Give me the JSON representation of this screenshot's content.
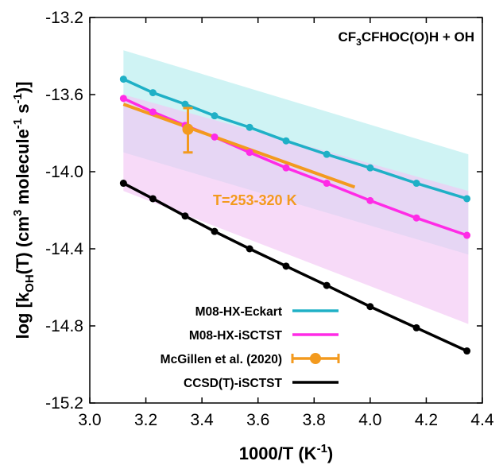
{
  "chart_data": {
    "type": "line",
    "title": "",
    "annotation": "CF3CFHOC(O)H + OH",
    "xlabel": "1000/T (K⁻¹)",
    "ylabel": "log [kₒₕ(T) (cm³ molecule⁻¹ s⁻¹)]",
    "xlim": [
      3.0,
      4.4
    ],
    "ylim": [
      -15.2,
      -13.2
    ],
    "xticks": [
      "3.0",
      "3.2",
      "3.4",
      "3.6",
      "3.8",
      "4.0",
      "4.2",
      "4.4"
    ],
    "yticks": [
      "-13.2",
      "-13.6",
      "-14.0",
      "-14.4",
      "-14.8",
      "-15.2"
    ],
    "grid": false,
    "legend_position": "bottom-left",
    "uncertainty_bands": [
      {
        "series": "M08-HX-Eckart",
        "color": "#bfeff0",
        "x": [
          3.12,
          4.35
        ],
        "upper": [
          -13.37,
          -13.91
        ],
        "lower": [
          -13.9,
          -14.43
        ]
      },
      {
        "series": "M08-HX-iSCTST",
        "color": "#f3c6f5",
        "x": [
          3.12,
          4.35
        ],
        "upper": [
          -13.6,
          -14.1
        ],
        "lower": [
          -14.1,
          -14.79
        ]
      }
    ],
    "series": [
      {
        "name": "M08-HX-Eckart",
        "color": "#1fb0c6",
        "x": [
          3.12,
          3.225,
          3.34,
          3.445,
          3.57,
          3.7,
          3.845,
          4.0,
          4.165,
          4.345
        ],
        "y": [
          -13.52,
          -13.59,
          -13.65,
          -13.71,
          -13.77,
          -13.84,
          -13.91,
          -13.98,
          -14.06,
          -14.14
        ]
      },
      {
        "name": "M08-HX-iSCTST",
        "color": "#ff2be6",
        "x": [
          3.12,
          3.225,
          3.34,
          3.445,
          3.57,
          3.7,
          3.845,
          4.0,
          4.165,
          4.345
        ],
        "y": [
          -13.62,
          -13.69,
          -13.76,
          -13.82,
          -13.9,
          -13.98,
          -14.06,
          -14.15,
          -14.24,
          -14.33
        ]
      },
      {
        "name": "McGillen et al. (2020)",
        "color": "#f39a1e",
        "type": "fit_with_point",
        "x": [
          3.12,
          3.945
        ],
        "y": [
          -13.65,
          -14.08
        ],
        "point": {
          "x": 3.35,
          "y": -13.78,
          "yerr_low": -13.9,
          "yerr_high": -13.67
        }
      },
      {
        "name": "CCSD(T)-iSCTST",
        "color": "#000000",
        "x": [
          3.12,
          3.225,
          3.34,
          3.445,
          3.57,
          3.7,
          3.845,
          4.0,
          4.165,
          4.345
        ],
        "y": [
          -14.06,
          -14.14,
          -14.23,
          -14.31,
          -14.4,
          -14.49,
          -14.59,
          -14.7,
          -14.81,
          -14.93
        ]
      }
    ],
    "range_label": "T=253-320 K"
  }
}
